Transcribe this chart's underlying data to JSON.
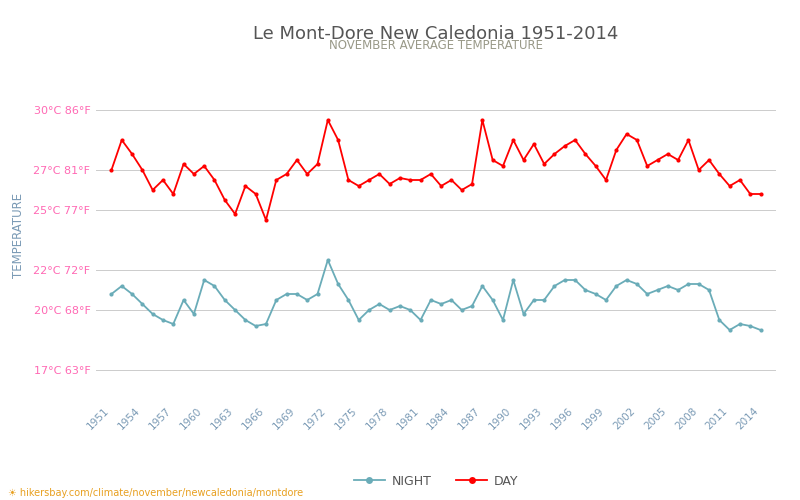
{
  "title": "Le Mont-Dore New Caledonia 1951-2014",
  "subtitle": "NOVEMBER AVERAGE TEMPERATURE",
  "ylabel": "TEMPERATURE",
  "url_text": "hikersbay.com/climate/november/newcaledonia/montdore",
  "years": [
    1951,
    1952,
    1953,
    1954,
    1955,
    1956,
    1957,
    1958,
    1959,
    1960,
    1961,
    1962,
    1963,
    1964,
    1965,
    1966,
    1967,
    1968,
    1969,
    1970,
    1971,
    1972,
    1973,
    1974,
    1975,
    1976,
    1977,
    1978,
    1979,
    1980,
    1981,
    1982,
    1983,
    1984,
    1985,
    1986,
    1987,
    1988,
    1989,
    1990,
    1991,
    1992,
    1993,
    1994,
    1995,
    1996,
    1997,
    1998,
    1999,
    2000,
    2001,
    2002,
    2003,
    2004,
    2005,
    2006,
    2007,
    2008,
    2009,
    2010,
    2011,
    2012,
    2013,
    2014
  ],
  "day_temps": [
    27.0,
    28.5,
    27.8,
    27.0,
    26.0,
    26.5,
    25.8,
    27.3,
    26.8,
    27.2,
    26.5,
    25.5,
    24.8,
    26.2,
    25.8,
    24.5,
    26.5,
    26.8,
    27.5,
    26.8,
    27.3,
    29.5,
    28.5,
    26.5,
    26.2,
    26.5,
    26.8,
    26.3,
    26.6,
    26.5,
    26.5,
    26.8,
    26.2,
    26.5,
    26.0,
    26.3,
    29.5,
    27.5,
    27.2,
    28.5,
    27.5,
    28.3,
    27.3,
    27.8,
    28.2,
    28.5,
    27.8,
    27.2,
    26.5,
    28.0,
    28.8,
    28.5,
    27.2,
    27.5,
    27.8,
    27.5,
    28.5,
    27.0,
    27.5,
    26.8,
    26.2,
    26.5,
    25.8,
    25.8
  ],
  "night_temps": [
    20.8,
    21.2,
    20.8,
    20.3,
    19.8,
    19.5,
    19.3,
    20.5,
    19.8,
    21.5,
    21.2,
    20.5,
    20.0,
    19.5,
    19.2,
    19.3,
    20.5,
    20.8,
    20.8,
    20.5,
    20.8,
    22.5,
    21.3,
    20.5,
    19.5,
    20.0,
    20.3,
    20.0,
    20.2,
    20.0,
    19.5,
    20.5,
    20.3,
    20.5,
    20.0,
    20.2,
    21.2,
    20.5,
    19.5,
    21.5,
    19.8,
    20.5,
    20.5,
    21.2,
    21.5,
    21.5,
    21.0,
    20.8,
    20.5,
    21.2,
    21.5,
    21.3,
    20.8,
    21.0,
    21.2,
    21.0,
    21.3,
    21.3,
    21.0,
    19.5,
    19.0,
    19.3,
    19.2,
    19.0
  ],
  "day_color": "#ff0000",
  "night_color": "#6aacb8",
  "bg_color": "#ffffff",
  "grid_color": "#cccccc",
  "title_color": "#555555",
  "subtitle_color": "#999988",
  "ytick_color": "#ff69b4",
  "xtick_color": "#7a9ab5",
  "ylabel_color": "#7a9ab5",
  "ytick_labels": [
    "17°C 63°F",
    "20°C 68°F",
    "22°C 72°F",
    "25°C 77°F",
    "27°C 81°F",
    "30°C 86°F"
  ],
  "ytick_values": [
    17,
    20,
    22,
    25,
    27,
    30
  ],
  "ylim": [
    15.5,
    32.0
  ],
  "xlim": [
    1949.5,
    2015.5
  ]
}
